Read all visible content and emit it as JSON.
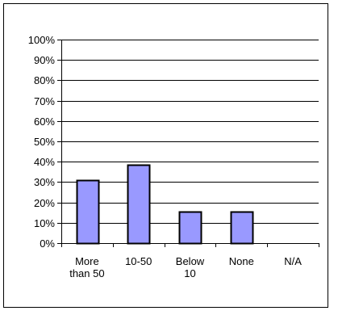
{
  "chart_data": {
    "type": "bar",
    "title": "",
    "xlabel": "",
    "ylabel": "",
    "categories": [
      "More than 50",
      "10-50",
      "Below 10",
      "None",
      "N/A"
    ],
    "category_label_lines": [
      [
        "More",
        "than 50"
      ],
      [
        "10-50"
      ],
      [
        "Below",
        "10"
      ],
      [
        "None"
      ],
      [
        "N/A"
      ]
    ],
    "values": [
      0.31,
      0.385,
      0.155,
      0.155,
      0
    ],
    "ylim": [
      0,
      1
    ],
    "yticks": [
      0,
      0.1,
      0.2,
      0.3,
      0.4,
      0.5,
      0.6,
      0.7,
      0.8,
      0.9,
      1
    ],
    "ytick_labels": [
      "0%",
      "10%",
      "20%",
      "30%",
      "40%",
      "50%",
      "60%",
      "70%",
      "80%",
      "90%",
      "100%"
    ],
    "grid": true,
    "legend": "none",
    "colors": {
      "bar_fill": "#9999ff",
      "bar_stroke": "#000000",
      "gridline": "#000000",
      "axis": "#000000",
      "text": "#000000"
    }
  }
}
